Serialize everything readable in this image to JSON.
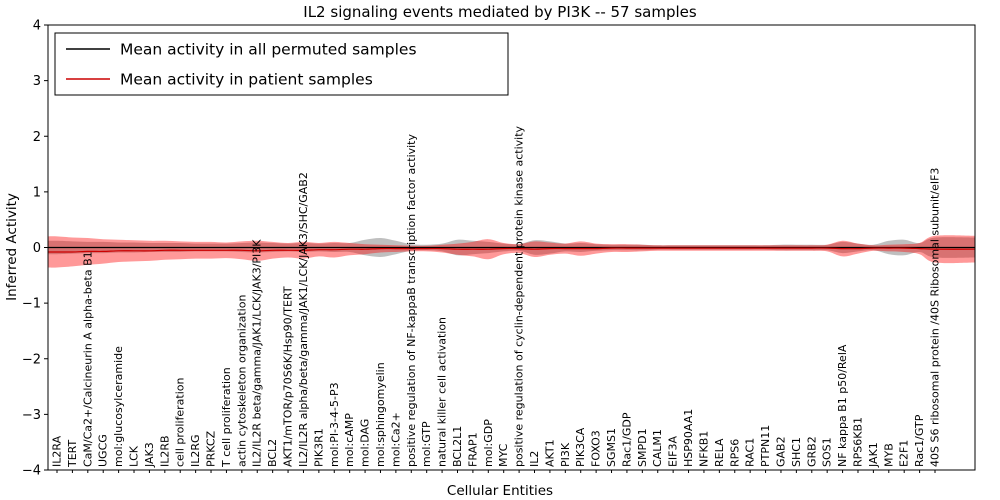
{
  "figure": {
    "title": "IL2 signaling events mediated by PI3K -- 57 samples",
    "xlabel": "Cellular Entities",
    "ylabel": "Inferred Activity"
  },
  "legend": {
    "position": "upper left",
    "entries": [
      {
        "label": "Mean activity in all permuted samples",
        "color": "#000000"
      },
      {
        "label": "Mean activity in patient samples",
        "color": "#cc0000"
      }
    ]
  },
  "chart_data": {
    "type": "line",
    "title": "IL2 signaling events mediated by PI3K -- 57 samples",
    "xlabel": "Cellular Entities",
    "ylabel": "Inferred Activity",
    "ylim": [
      -4,
      4
    ],
    "yticks": [
      4,
      3,
      2,
      1,
      0,
      -1,
      -2,
      -3,
      -4
    ],
    "ytick_labels": [
      "4",
      "3",
      "2",
      "1",
      "0",
      "−1",
      "−2",
      "−3",
      "−4"
    ],
    "grid": false,
    "legend_position": "upper left",
    "categories": [
      "IL2RA",
      "TERT",
      "CaM/Ca2+/Calcineurin A alpha-beta B1",
      "UGCG",
      "mol:glucosylceramide",
      "LCK",
      "JAK3",
      "IL2RB",
      "cell proliferation",
      "IL2RG",
      "PRKCZ",
      "T cell proliferation",
      "actin cytoskeleton organization",
      "IL2/IL2R beta/gamma/JAK1/LCK/JAK3/PI3K",
      "BCL2",
      "AKT1/mTOR/p70S6K/Hsp90/TERT",
      "IL2/IL2R alpha/beta/gamma/JAK1/LCK/JAK3/SHC/GAB2",
      "PIK3R1",
      "mol:PI-3-4-5-P3",
      "mol:cAMP",
      "mol:DAG",
      "mol:sphingomyelin",
      "mol:Ca2+",
      "positive regulation of NF-kappaB transcription factor activity",
      "mol:GTP",
      "natural killer cell activation",
      "BCL2L1",
      "FRAP1",
      "mol:GDP",
      "MYC",
      "positive regulation of cyclin-dependent protein kinase activity",
      "IL2",
      "AKT1",
      "PI3K",
      "PIK3CA",
      "FOXO3",
      "SGMS1",
      "Rac1/GDP",
      "SMPD1",
      "CALM1",
      "EIF3A",
      "HSP90AA1",
      "NFKB1",
      "RELA",
      "RPS6",
      "RAC1",
      "PTPN11",
      "GAB2",
      "SHC1",
      "GRB2",
      "SOS1",
      "NF kappa B1 p50/RelA",
      "RPS6KB1",
      "JAK1",
      "MYB",
      "E2F1",
      "Rac1/GTP",
      "40S S6 ribosomal protein /40S Ribosomal subunit/eIF3"
    ],
    "series": [
      {
        "name": "Mean activity in all permuted samples",
        "color": "#000000",
        "values": [
          0,
          0,
          0,
          0,
          0,
          0,
          0,
          0,
          0,
          0,
          0,
          0,
          0,
          0,
          0,
          0,
          0,
          0,
          0,
          0,
          0,
          0,
          0,
          0,
          0,
          0,
          0,
          0,
          0,
          0,
          0,
          0,
          0,
          0,
          0,
          0,
          0,
          0,
          0,
          0,
          0,
          0,
          0,
          0,
          0,
          0,
          0,
          0,
          0,
          0,
          0,
          0,
          0,
          0,
          0,
          0,
          0,
          0
        ]
      },
      {
        "name": "Mean activity in patient samples",
        "color": "#cc0000",
        "values": [
          -0.08,
          -0.08,
          -0.07,
          -0.07,
          -0.06,
          -0.06,
          -0.06,
          -0.05,
          -0.05,
          -0.05,
          -0.05,
          -0.05,
          -0.05,
          -0.06,
          -0.05,
          -0.05,
          -0.05,
          -0.04,
          -0.04,
          -0.03,
          -0.03,
          -0.02,
          -0.02,
          -0.02,
          -0.02,
          -0.02,
          -0.03,
          -0.03,
          -0.03,
          -0.02,
          -0.02,
          -0.03,
          -0.02,
          -0.02,
          -0.02,
          -0.02,
          -0.01,
          -0.01,
          -0.01,
          -0.01,
          -0.01,
          -0.01,
          -0.01,
          -0.01,
          -0.01,
          -0.01,
          -0.01,
          -0.01,
          -0.01,
          -0.01,
          -0.01,
          -0.02,
          -0.02,
          -0.01,
          -0.01,
          -0.01,
          -0.02,
          -0.03
        ]
      }
    ],
    "bands": [
      {
        "name": "permuted-std-band",
        "color": "#000000",
        "opacity": 0.25,
        "center_series": 0,
        "half_widths": [
          0.12,
          0.11,
          0.1,
          0.1,
          0.09,
          0.09,
          0.08,
          0.08,
          0.08,
          0.07,
          0.07,
          0.07,
          0.08,
          0.09,
          0.08,
          0.07,
          0.08,
          0.07,
          0.08,
          0.08,
          0.14,
          0.17,
          0.12,
          0.06,
          0.05,
          0.07,
          0.14,
          0.12,
          0.1,
          0.07,
          0.06,
          0.13,
          0.11,
          0.07,
          0.08,
          0.06,
          0.05,
          0.05,
          0.05,
          0.04,
          0.04,
          0.04,
          0.04,
          0.04,
          0.04,
          0.04,
          0.04,
          0.05,
          0.05,
          0.05,
          0.05,
          0.1,
          0.07,
          0.05,
          0.12,
          0.14,
          0.08,
          0.18
        ]
      },
      {
        "name": "patient-std-band",
        "color": "#ff0000",
        "opacity": 0.4,
        "center_series": 1,
        "half_widths": [
          0.28,
          0.26,
          0.24,
          0.22,
          0.2,
          0.19,
          0.18,
          0.17,
          0.16,
          0.15,
          0.15,
          0.14,
          0.16,
          0.18,
          0.15,
          0.13,
          0.15,
          0.12,
          0.14,
          0.11,
          0.09,
          0.07,
          0.06,
          0.05,
          0.05,
          0.07,
          0.1,
          0.13,
          0.18,
          0.1,
          0.08,
          0.14,
          0.11,
          0.09,
          0.13,
          0.09,
          0.07,
          0.07,
          0.06,
          0.05,
          0.05,
          0.05,
          0.05,
          0.05,
          0.05,
          0.05,
          0.05,
          0.05,
          0.05,
          0.05,
          0.06,
          0.14,
          0.09,
          0.05,
          0.06,
          0.07,
          0.1,
          0.24
        ]
      }
    ]
  }
}
